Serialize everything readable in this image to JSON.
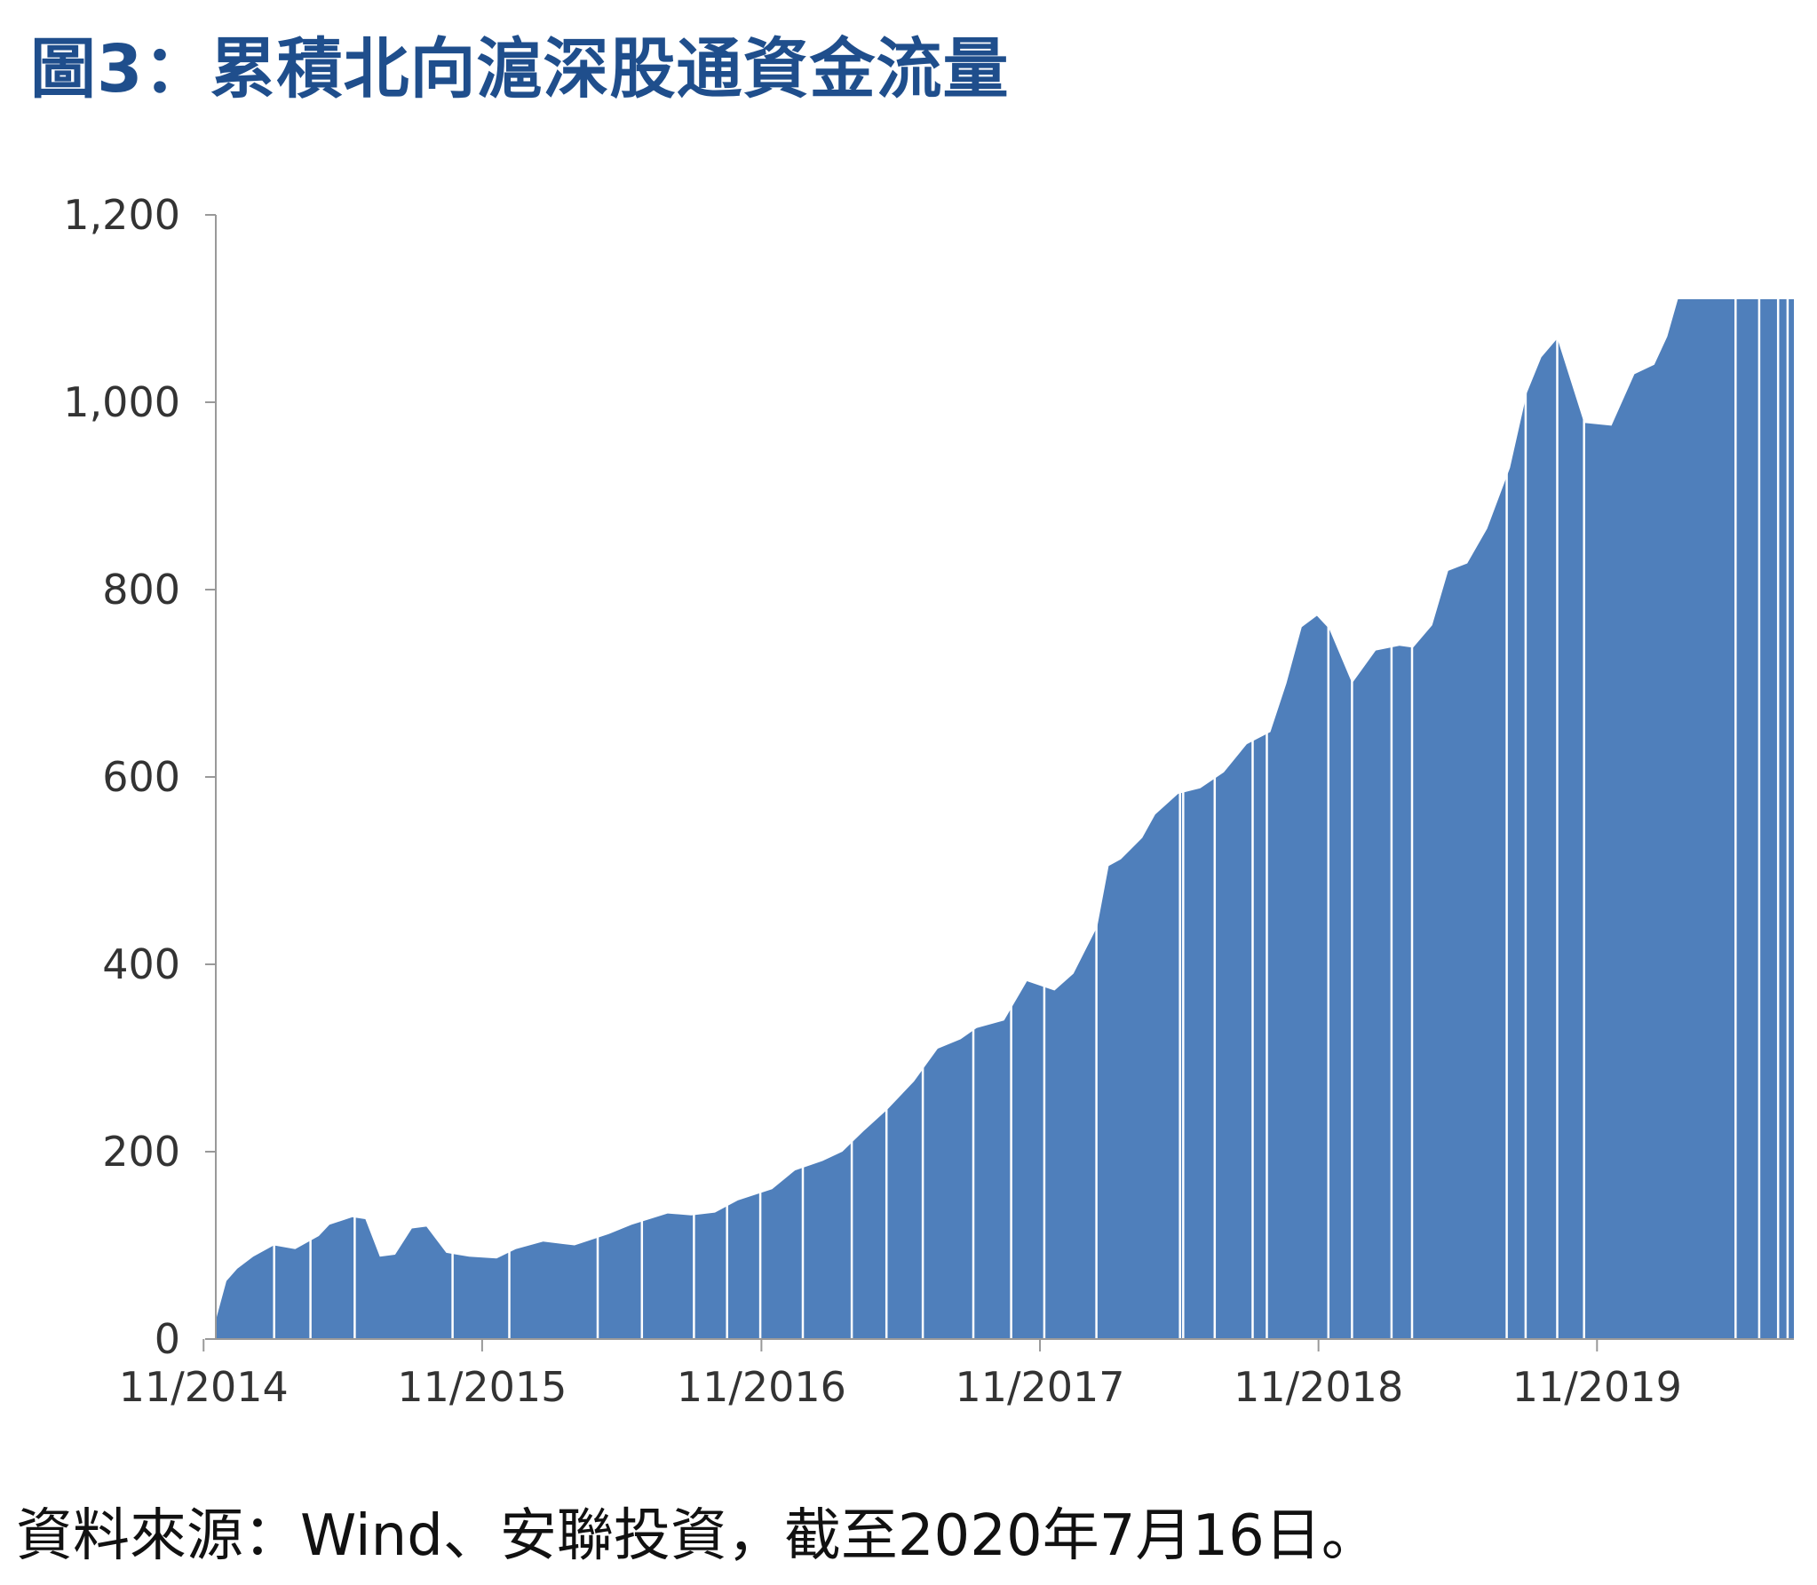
{
  "title": "圖3：累積北向滬深股通資金流量",
  "source": "資料來源：Wind、安聯投資，截至2020年7月16日。",
  "colors": {
    "title": "#1f4e8c",
    "bar": "#4f7fbb",
    "axis": "#999999",
    "text": "#333333"
  },
  "chart_data": {
    "type": "area",
    "title": "圖3：累積北向滬深股通資金流量",
    "xlabel": "",
    "ylabel": "",
    "ylim": [
      0,
      1200
    ],
    "yticks": [
      0,
      200,
      400,
      600,
      800,
      1000,
      1200
    ],
    "ytick_labels": [
      "0",
      "200",
      "400",
      "600",
      "800",
      "1,000",
      "1,200"
    ],
    "xlim": [
      "2014-11-17",
      "2020-07-16"
    ],
    "xticks": [
      "2014-11",
      "2015-11",
      "2016-11",
      "2017-11",
      "2018-11",
      "2019-11"
    ],
    "xtick_labels": [
      "11/2014",
      "11/2015",
      "11/2016",
      "11/2017",
      "11/2018",
      "11/2019"
    ],
    "grid": false,
    "legend": "none",
    "series": [
      {
        "x": [
          "2014-11-17",
          "2014-12-01",
          "2014-12-15",
          "2015-01-05",
          "2015-02-01",
          "2015-03-01",
          "2015-04-01",
          "2015-04-15",
          "2015-05-15",
          "2015-06-01",
          "2015-06-20",
          "2015-07-10",
          "2015-08-01",
          "2015-08-20",
          "2015-09-15",
          "2015-10-15",
          "2015-11-20",
          "2015-12-15",
          "2016-01-20",
          "2016-03-01",
          "2016-04-15",
          "2016-05-15",
          "2016-07-01",
          "2016-08-01",
          "2016-09-01",
          "2016-10-01",
          "2016-11-15",
          "2016-12-15",
          "2017-01-20",
          "2017-02-15",
          "2017-03-15",
          "2017-04-15",
          "2017-05-20",
          "2017-06-20",
          "2017-07-20",
          "2017-08-10",
          "2017-09-15",
          "2017-10-15",
          "2017-11-20",
          "2017-12-15",
          "2018-01-15",
          "2018-01-30",
          "2018-02-15",
          "2018-03-15",
          "2018-04-01",
          "2018-05-01",
          "2018-05-30",
          "2018-06-30",
          "2018-07-30",
          "2018-08-30",
          "2018-09-20",
          "2018-10-10",
          "2018-10-30",
          "2018-11-15",
          "2018-12-15",
          "2019-01-15",
          "2019-02-15",
          "2019-03-05",
          "2019-03-30",
          "2019-04-20",
          "2019-05-15",
          "2019-06-10",
          "2019-07-10",
          "2019-08-01",
          "2019-08-20",
          "2019-09-10",
          "2019-10-15",
          "2019-11-20",
          "2019-12-20",
          "2020-01-15",
          "2020-02-01",
          "2020-02-15",
          "2020-03-05",
          "2020-03-15",
          "2020-03-25",
          "2020-04-15",
          "2020-05-15",
          "2020-06-15",
          "2020-07-01",
          "2020-07-16"
        ],
        "values": [
          20,
          62,
          75,
          88,
          100,
          96,
          110,
          122,
          130,
          128,
          88,
          90,
          118,
          120,
          92,
          88,
          86,
          96,
          104,
          100,
          112,
          122,
          134,
          132,
          135,
          148,
          160,
          180,
          190,
          200,
          222,
          245,
          275,
          310,
          320,
          332,
          340,
          382,
          372,
          390,
          440,
          505,
          512,
          535,
          560,
          582,
          588,
          605,
          635,
          648,
          700,
          760,
          772,
          758,
          700,
          735,
          740,
          738,
          762,
          820,
          828,
          865,
          930,
          1010,
          1048,
          1068,
          978,
          975,
          1030,
          1040,
          1070,
          1110,
          1110,
          1110,
          1110,
          1110,
          1110,
          1110,
          1110,
          1110
        ]
      }
    ]
  }
}
